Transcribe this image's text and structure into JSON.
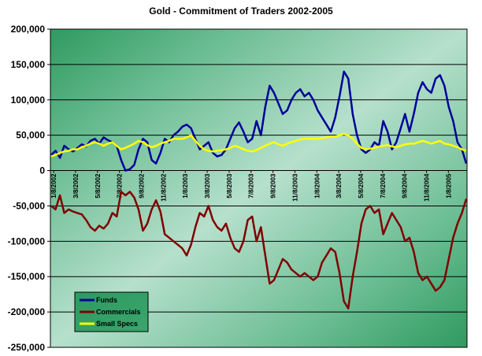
{
  "chart_data": {
    "type": "line",
    "title": "Gold - Commitment of Traders 2002-2005",
    "xlabel": "",
    "ylabel": "",
    "ylim": [
      -250000,
      200000
    ],
    "y_ticks": [
      "200,000",
      "150,000",
      "100,000",
      "50,000",
      "0",
      "-50,000",
      "-100,000",
      "-150,000",
      "-200,000",
      "-250,000"
    ],
    "x_tick_labels": [
      "1/8/2002",
      "3/8/2002",
      "5/8/2002",
      "7/8/2002",
      "9/8/2002",
      "11/8/2002",
      "1/8/2003",
      "3/8/2003",
      "5/8/2003",
      "7/8/2003",
      "9/8/2003",
      "11/8/2003",
      "1/8/2004",
      "3/8/2004",
      "5/8/2004",
      "7/8/2004",
      "9/8/2004",
      "11/8/2004",
      "1/8/2005"
    ],
    "grid": "horizontal",
    "legend_position": "bottom-left",
    "colors": {
      "background_light": "#a9d8c0",
      "background_dark": "#2f9a60",
      "grid": "#000000"
    },
    "series": [
      {
        "name": "Funds",
        "color": "#000099",
        "values": [
          22000,
          28000,
          18000,
          35000,
          30000,
          27000,
          32000,
          37000,
          34000,
          42000,
          45000,
          38000,
          47000,
          43000,
          40000,
          35000,
          15000,
          0,
          2000,
          8000,
          30000,
          45000,
          40000,
          15000,
          10000,
          25000,
          45000,
          40000,
          50000,
          55000,
          62000,
          65000,
          60000,
          45000,
          30000,
          35000,
          40000,
          25000,
          20000,
          22000,
          30000,
          45000,
          60000,
          68000,
          55000,
          40000,
          45000,
          70000,
          50000,
          90000,
          120000,
          110000,
          95000,
          80000,
          85000,
          100000,
          110000,
          115000,
          105000,
          110000,
          100000,
          85000,
          75000,
          65000,
          55000,
          75000,
          105000,
          140000,
          130000,
          80000,
          50000,
          30000,
          25000,
          30000,
          40000,
          35000,
          70000,
          55000,
          30000,
          40000,
          60000,
          80000,
          55000,
          80000,
          110000,
          125000,
          115000,
          110000,
          130000,
          135000,
          120000,
          90000,
          70000,
          40000,
          30000,
          10000
        ]
      },
      {
        "name": "Commercials",
        "color": "#800000",
        "values": [
          -50000,
          -55000,
          -35000,
          -60000,
          -55000,
          -58000,
          -60000,
          -62000,
          -70000,
          -80000,
          -85000,
          -78000,
          -82000,
          -75000,
          -60000,
          -65000,
          -30000,
          -35000,
          -30000,
          -38000,
          -55000,
          -85000,
          -75000,
          -55000,
          -42000,
          -58000,
          -90000,
          -95000,
          -100000,
          -105000,
          -110000,
          -120000,
          -105000,
          -80000,
          -60000,
          -65000,
          -50000,
          -70000,
          -80000,
          -85000,
          -75000,
          -95000,
          -110000,
          -115000,
          -100000,
          -70000,
          -65000,
          -100000,
          -80000,
          -120000,
          -160000,
          -155000,
          -140000,
          -125000,
          -130000,
          -140000,
          -145000,
          -150000,
          -145000,
          -150000,
          -155000,
          -150000,
          -130000,
          -120000,
          -110000,
          -115000,
          -145000,
          -185000,
          -195000,
          -150000,
          -115000,
          -75000,
          -55000,
          -50000,
          -60000,
          -55000,
          -90000,
          -75000,
          -60000,
          -70000,
          -80000,
          -100000,
          -95000,
          -115000,
          -145000,
          -155000,
          -150000,
          -160000,
          -170000,
          -165000,
          -155000,
          -125000,
          -95000,
          -75000,
          -60000,
          -40000
        ]
      },
      {
        "name": "Small Specs",
        "color": "#ffff00",
        "values": [
          20000,
          22000,
          25000,
          27000,
          28000,
          30000,
          30000,
          33000,
          35000,
          38000,
          40000,
          38000,
          35000,
          38000,
          40000,
          35000,
          30000,
          32000,
          35000,
          38000,
          42000,
          40000,
          36000,
          33000,
          35000,
          38000,
          40000,
          42000,
          45000,
          45000,
          45000,
          47000,
          50000,
          42000,
          35000,
          30000,
          28000,
          27000,
          28000,
          29000,
          30000,
          32000,
          35000,
          33000,
          30000,
          28000,
          27000,
          29000,
          32000,
          35000,
          38000,
          40000,
          37000,
          35000,
          38000,
          40000,
          42000,
          44000,
          45000,
          45000,
          45000,
          45000,
          46000,
          47000,
          48000,
          48000,
          50000,
          52000,
          50000,
          45000,
          38000,
          32000,
          30000,
          31000,
          32000,
          34000,
          35000,
          36000,
          34000,
          33000,
          35000,
          37000,
          38000,
          38000,
          40000,
          42000,
          40000,
          38000,
          40000,
          42000,
          38000,
          37000,
          35000,
          33000,
          30000,
          28000
        ]
      }
    ]
  }
}
